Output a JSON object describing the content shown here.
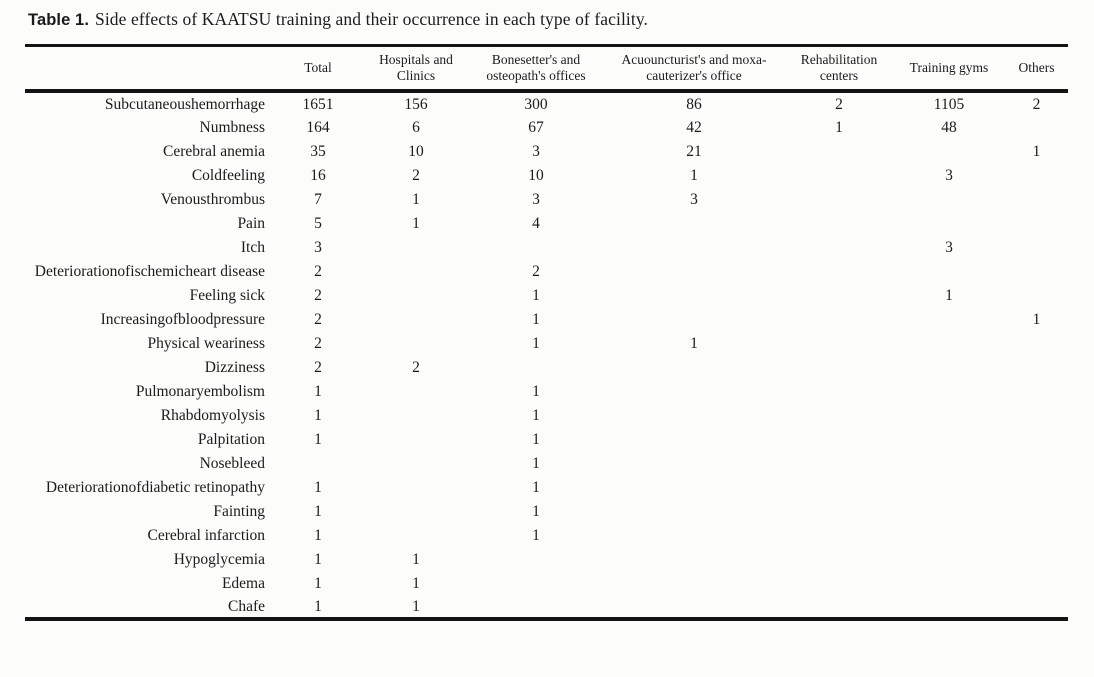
{
  "caption": {
    "label": "Table 1.",
    "text": "Side effects of KAATSU training and their occurrence in each type of facility."
  },
  "table": {
    "columns": [
      "",
      "Total",
      "Hospitals and Clinics",
      "Bonesetter's and osteopath's offices",
      "Acuouncturist's and moxa-cauterizer's office",
      "Rehabilitation centers",
      "Training gyms",
      "Others"
    ],
    "rows": [
      {
        "label": "Subcutaneoushemorrhage",
        "values": [
          "1651",
          "156",
          "300",
          "86",
          "2",
          "1105",
          "2"
        ]
      },
      {
        "label": "Numbness",
        "values": [
          "164",
          "6",
          "67",
          "42",
          "1",
          "48",
          ""
        ]
      },
      {
        "label": "Cerebral anemia",
        "values": [
          "35",
          "10",
          "3",
          "21",
          "",
          "",
          "1"
        ]
      },
      {
        "label": "Coldfeeling",
        "values": [
          "16",
          "2",
          "10",
          "1",
          "",
          "3",
          ""
        ]
      },
      {
        "label": "Venousthrombus",
        "values": [
          "7",
          "1",
          "3",
          "3",
          "",
          "",
          ""
        ]
      },
      {
        "label": "Pain",
        "values": [
          "5",
          "1",
          "4",
          "",
          "",
          "",
          ""
        ]
      },
      {
        "label": "Itch",
        "values": [
          "3",
          "",
          "",
          "",
          "",
          "3",
          ""
        ]
      },
      {
        "label": "Deteriorationofischemicheart disease",
        "values": [
          "2",
          "",
          "2",
          "",
          "",
          "",
          ""
        ]
      },
      {
        "label": "Feeling sick",
        "values": [
          "2",
          "",
          "1",
          "",
          "",
          "1",
          ""
        ]
      },
      {
        "label": "Increasingofbloodpressure",
        "values": [
          "2",
          "",
          "1",
          "",
          "",
          "",
          "1"
        ]
      },
      {
        "label": "Physical weariness",
        "values": [
          "2",
          "",
          "1",
          "1",
          "",
          "",
          ""
        ]
      },
      {
        "label": "Dizziness",
        "values": [
          "2",
          "2",
          "",
          "",
          "",
          "",
          ""
        ]
      },
      {
        "label": "Pulmonaryembolism",
        "values": [
          "1",
          "",
          "1",
          "",
          "",
          "",
          ""
        ]
      },
      {
        "label": "Rhabdomyolysis",
        "values": [
          "1",
          "",
          "1",
          "",
          "",
          "",
          ""
        ]
      },
      {
        "label": "Palpitation",
        "values": [
          "1",
          "",
          "1",
          "",
          "",
          "",
          ""
        ]
      },
      {
        "label": "Nosebleed",
        "values": [
          "",
          "",
          "1",
          "",
          "",
          "",
          ""
        ]
      },
      {
        "label": "Deteriorationofdiabetic retinopathy",
        "values": [
          "1",
          "",
          "1",
          "",
          "",
          "",
          ""
        ]
      },
      {
        "label": "Fainting",
        "values": [
          "1",
          "",
          "1",
          "",
          "",
          "",
          ""
        ]
      },
      {
        "label": "Cerebral infarction",
        "values": [
          "1",
          "",
          "1",
          "",
          "",
          "",
          ""
        ]
      },
      {
        "label": "Hypoglycemia",
        "values": [
          "1",
          "1",
          "",
          "",
          "",
          "",
          ""
        ]
      },
      {
        "label": "Edema",
        "values": [
          "1",
          "1",
          "",
          "",
          "",
          "",
          ""
        ]
      },
      {
        "label": "Chafe",
        "values": [
          "1",
          "1",
          "",
          "",
          "",
          "",
          ""
        ]
      }
    ]
  },
  "colors": {
    "rule": "#141414",
    "text": "#1b1b1b",
    "background": "#fcfcfb"
  }
}
